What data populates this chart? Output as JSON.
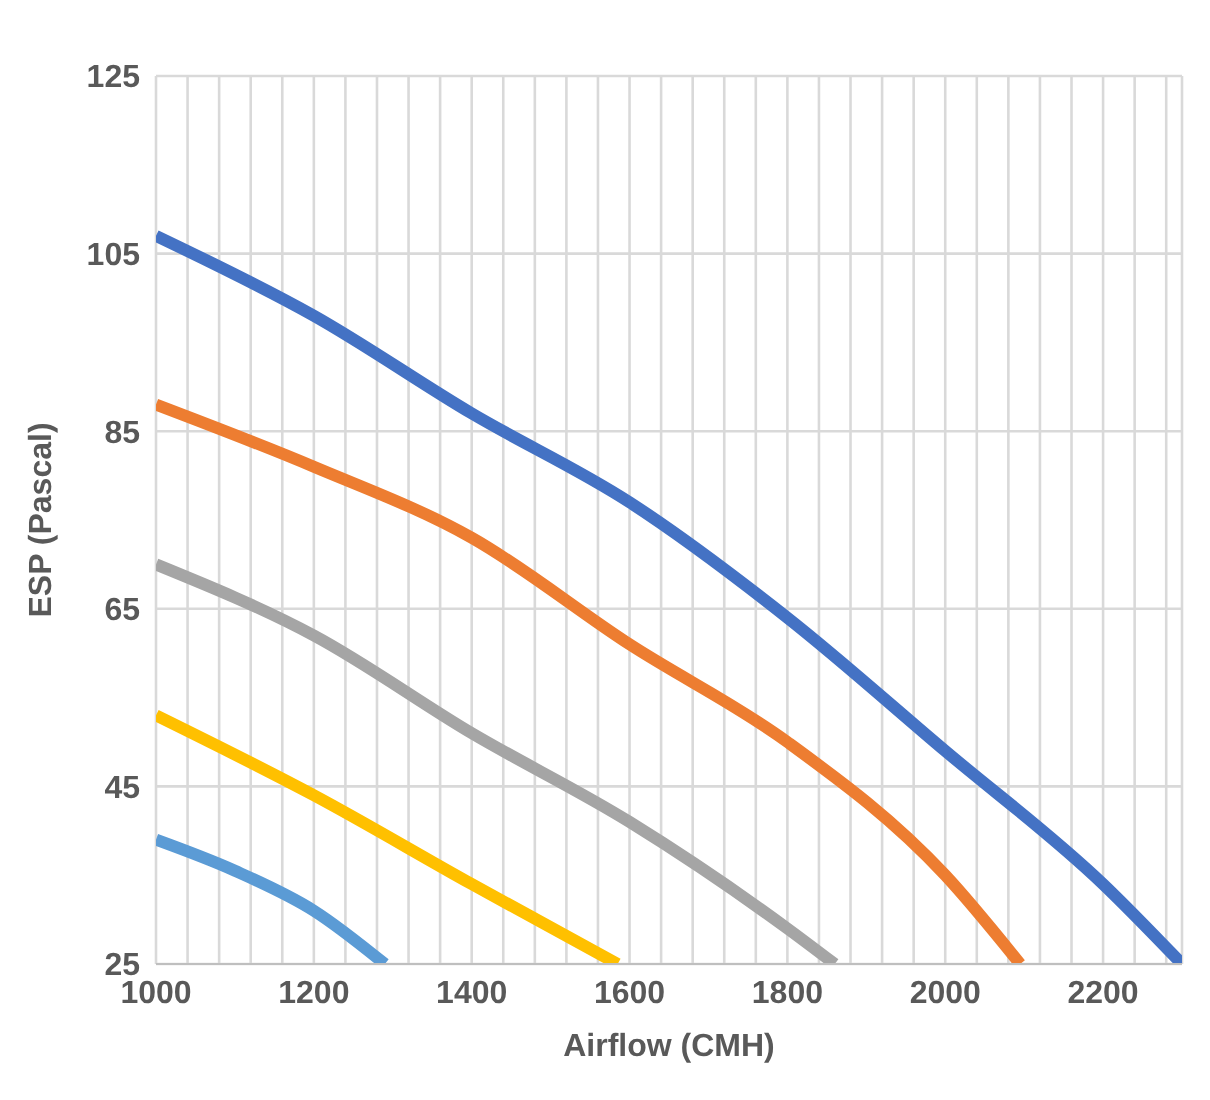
{
  "chart_data": {
    "type": "line",
    "xlabel": "Airflow (CMH)",
    "ylabel": "ESP (Pascal)",
    "xlim": [
      1000,
      2300
    ],
    "xticks": [
      1000,
      {
        "value": 1040,
        "label": null
      },
      {
        "value": 1080,
        "label": null
      },
      {
        "value": 1120,
        "label": null
      },
      {
        "value": 1160,
        "label": null
      },
      1200,
      {
        "value": 1240,
        "label": null
      },
      {
        "value": 1280,
        "label": null
      },
      {
        "value": 1320,
        "label": null
      },
      {
        "value": 1360,
        "label": null
      },
      1400,
      {
        "value": 1440,
        "label": null
      },
      {
        "value": 1480,
        "label": null
      },
      {
        "value": 1520,
        "label": null
      },
      {
        "value": 1560,
        "label": null
      },
      1600,
      {
        "value": 1640,
        "label": null
      },
      {
        "value": 1680,
        "label": null
      },
      {
        "value": 1720,
        "label": null
      },
      {
        "value": 1760,
        "label": null
      },
      1800,
      {
        "value": 1840,
        "label": null
      },
      {
        "value": 1880,
        "label": null
      },
      {
        "value": 1920,
        "label": null
      },
      {
        "value": 1960,
        "label": null
      },
      2000,
      {
        "value": 2040,
        "label": null
      },
      {
        "value": 2080,
        "label": null
      },
      {
        "value": 2120,
        "label": null
      },
      {
        "value": 2160,
        "label": null
      },
      2200,
      {
        "value": 2240,
        "label": null
      },
      {
        "value": 2280,
        "label": null
      }
    ],
    "ylim": [
      25,
      125
    ],
    "yticks": [
      25,
      45,
      65,
      85,
      105,
      125
    ],
    "grid": true,
    "marker": "none",
    "line_style": "solid",
    "series": [
      {
        "color": "#4472c4",
        "x": [
          1000,
          1200,
          1400,
          1600,
          1800,
          2000,
          2200,
          2300
        ],
        "values": [
          107,
          98,
          87,
          77,
          64,
          49,
          34,
          25
        ]
      },
      {
        "color": "#ed7d31",
        "x": [
          1000,
          1200,
          1400,
          1600,
          1800,
          2000,
          2095
        ],
        "values": [
          88,
          81,
          73,
          61,
          50,
          35,
          25
        ]
      },
      {
        "color": "#a5a5a5",
        "x": [
          1000,
          1200,
          1400,
          1600,
          1800,
          1860
        ],
        "values": [
          70,
          62,
          51,
          41,
          29,
          25
        ]
      },
      {
        "color": "#ffc000",
        "x": [
          1000,
          1200,
          1400,
          1585
        ],
        "values": [
          53,
          44,
          34,
          25
        ]
      },
      {
        "color": "#5b9bd5",
        "x": [
          1000,
          1100,
          1200,
          1290
        ],
        "values": [
          39,
          35.5,
          31,
          25
        ]
      }
    ]
  }
}
